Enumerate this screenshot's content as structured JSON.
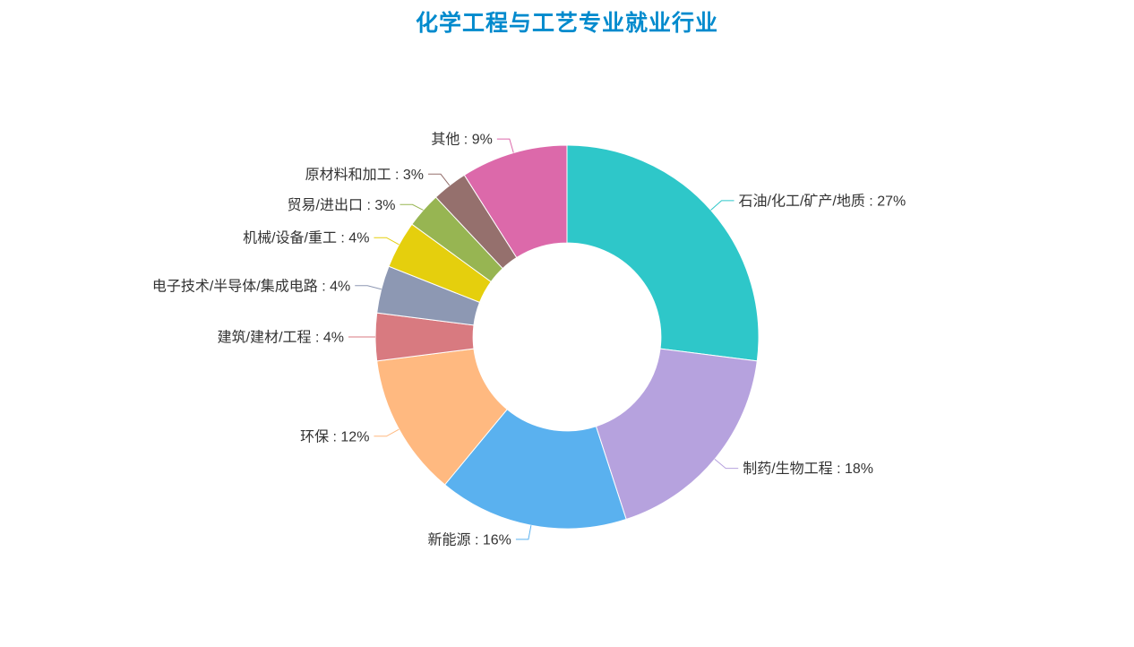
{
  "theme": {
    "title_color": "#008acd",
    "label_color": "#333333",
    "background": "#ffffff"
  },
  "chart_data": {
    "type": "pie",
    "subtype": "donut",
    "title": "化学工程与工艺专业就业行业",
    "unit": "%",
    "label_format": "{name} : {value}%",
    "legend_position": "none",
    "clockwise": true,
    "start_angle_deg": 0,
    "inner_radius_ratio": 0.49,
    "categories": [
      "石油/化工/矿产/地质",
      "制药/生物工程",
      "新能源",
      "环保",
      "建筑/建材/工程",
      "电子技术/半导体/集成电路",
      "机械/设备/重工",
      "贸易/进出口",
      "原材料和加工",
      "其他"
    ],
    "values": [
      27,
      18,
      16,
      12,
      4,
      4,
      4,
      3,
      3,
      9
    ],
    "colors": [
      "#2ec7c9",
      "#b6a2de",
      "#5ab1ef",
      "#ffb980",
      "#d87a80",
      "#8d98b3",
      "#e5cf0d",
      "#97b552",
      "#95706d",
      "#dc69aa"
    ]
  }
}
